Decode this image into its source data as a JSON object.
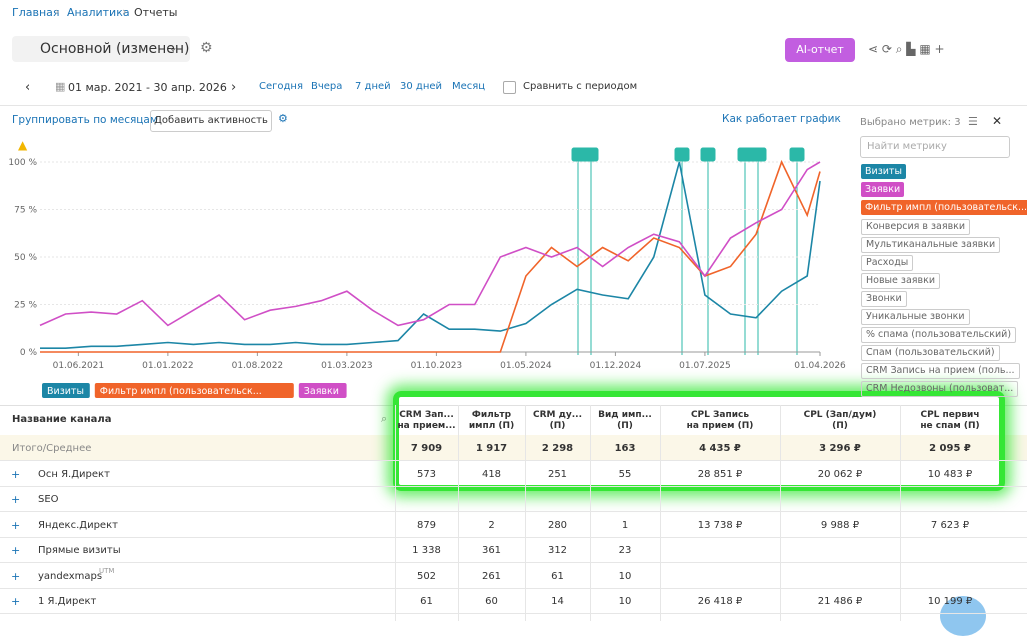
{
  "breadcrumbs": [
    "Главная",
    "Аналитика",
    "Отчеты"
  ],
  "report_name": "Основной (изменен)",
  "ai_button": "AI-отчет",
  "date_range": "01 мар. 2021 - 30 апр. 2026",
  "period_links": [
    "Сегодня",
    "Вчера",
    "7 дней",
    "30 дней",
    "Месяц"
  ],
  "compare_label": "Сравнить с периодом",
  "toolbar": {
    "group_by": "Группировать по месяцам",
    "add_activity": "Добавить активность",
    "how_it_works": "Как работает график"
  },
  "chart_data": {
    "type": "line",
    "x": [
      0,
      2,
      4,
      6,
      8,
      10,
      12,
      14,
      16,
      18,
      20,
      22,
      24,
      26,
      28,
      30,
      32,
      34,
      36,
      38,
      40,
      42,
      44,
      46,
      48,
      50,
      52,
      54,
      56,
      58,
      60,
      61
    ],
    "xlim": [
      0,
      61
    ],
    "xticks": [
      {
        "value": 3,
        "label": "01.06.2021"
      },
      {
        "value": 10,
        "label": "01.01.2022"
      },
      {
        "value": 17,
        "label": "01.08.2022"
      },
      {
        "value": 24,
        "label": "01.03.2023"
      },
      {
        "value": 31,
        "label": "01.10.2023"
      },
      {
        "value": 38,
        "label": "01.05.2024"
      },
      {
        "value": 45,
        "label": "01.12.2024"
      },
      {
        "value": 52,
        "label": "01.07.2025"
      },
      {
        "value": 61,
        "label": "01.04.2026"
      }
    ],
    "ylim": [
      0,
      100
    ],
    "yticks": [
      {
        "value": 0,
        "label": "0 %"
      },
      {
        "value": 25,
        "label": "25 %"
      },
      {
        "value": 50,
        "label": "50 %"
      },
      {
        "value": 75,
        "label": "75 %"
      },
      {
        "value": 100,
        "label": "100 %"
      }
    ],
    "grid": true,
    "series": [
      {
        "name": "Визиты",
        "color": "#1c86a6",
        "values": [
          2,
          2,
          3,
          3,
          4,
          5,
          4,
          5,
          4,
          4,
          5,
          4,
          4,
          5,
          6,
          20,
          12,
          12,
          11,
          15,
          25,
          33,
          30,
          28,
          50,
          100,
          30,
          20,
          18,
          32,
          40,
          90
        ]
      },
      {
        "name": "Фильтр импл (пользовательск...",
        "color": "#f0642a",
        "values": [
          0,
          0,
          0,
          0,
          0,
          0,
          0,
          0,
          0,
          0,
          0,
          0,
          0,
          0,
          0,
          0,
          0,
          0,
          0,
          40,
          55,
          45,
          55,
          48,
          60,
          55,
          40,
          45,
          62,
          100,
          72,
          95
        ]
      },
      {
        "name": "Заявки",
        "color": "#d04fc6",
        "values": [
          14,
          20,
          21,
          20,
          27,
          14,
          22,
          30,
          17,
          22,
          24,
          27,
          32,
          22,
          14,
          17,
          25,
          25,
          50,
          55,
          50,
          55,
          45,
          55,
          62,
          58,
          40,
          60,
          68,
          75,
          96,
          100
        ]
      }
    ]
  },
  "metrics_panel": {
    "title": "Выбрано метрик: 3",
    "search_placeholder": "Найти метрику",
    "available": [
      "Конверсия в заявки",
      "Мультиканальные заявки",
      "Расходы",
      "Новые заявки",
      "Звонки",
      "Уникальные звонки",
      "% спама (пользовательский)",
      "Спам (пользовательский)",
      "CRM Запись на прием (поль...",
      "CRM Недозвоны (пользоват..."
    ]
  },
  "table": {
    "name_header": "Название канала",
    "columns": [
      [
        "CRM Зап...",
        "на прием..."
      ],
      [
        "Фильтр",
        "импл (П)"
      ],
      [
        "CRM ду...",
        "(П)"
      ],
      [
        "Вид имп...",
        "(П)"
      ],
      [
        "CPL Запись",
        "на прием (П)"
      ],
      [
        "CPL (Зап/дум)",
        "(П)"
      ],
      [
        "CPL первич",
        "не спам (П)"
      ]
    ],
    "total": {
      "name": "Итого/Среднее",
      "cells": [
        "7 909",
        "1 917",
        "2 298",
        "163",
        "4 435 ₽",
        "3 296 ₽",
        "2 095 ₽"
      ]
    },
    "rows": [
      {
        "name": "Осн Я.Директ",
        "cells": [
          "573",
          "418",
          "251",
          "55",
          "28 851 ₽",
          "20 062 ₽",
          "10 483 ₽"
        ]
      },
      {
        "name": "SEO",
        "cells": []
      },
      {
        "name": "Яндекс.Директ",
        "cells": [
          "879",
          "2",
          "280",
          "1",
          "13 738 ₽",
          "9 988 ₽",
          "7 623 ₽"
        ]
      },
      {
        "name": "Прямые визиты",
        "cells": [
          "1 338",
          "361",
          "312",
          "23"
        ]
      },
      {
        "name": "yandexmaps",
        "sup": "UTM",
        "cells": [
          "502",
          "261",
          "61",
          "10"
        ]
      },
      {
        "name": "1 Я.Директ",
        "cells": [
          "61",
          "60",
          "14",
          "10",
          "26 418 ₽",
          "21 486 ₽",
          "10 199 ₽"
        ]
      }
    ]
  }
}
